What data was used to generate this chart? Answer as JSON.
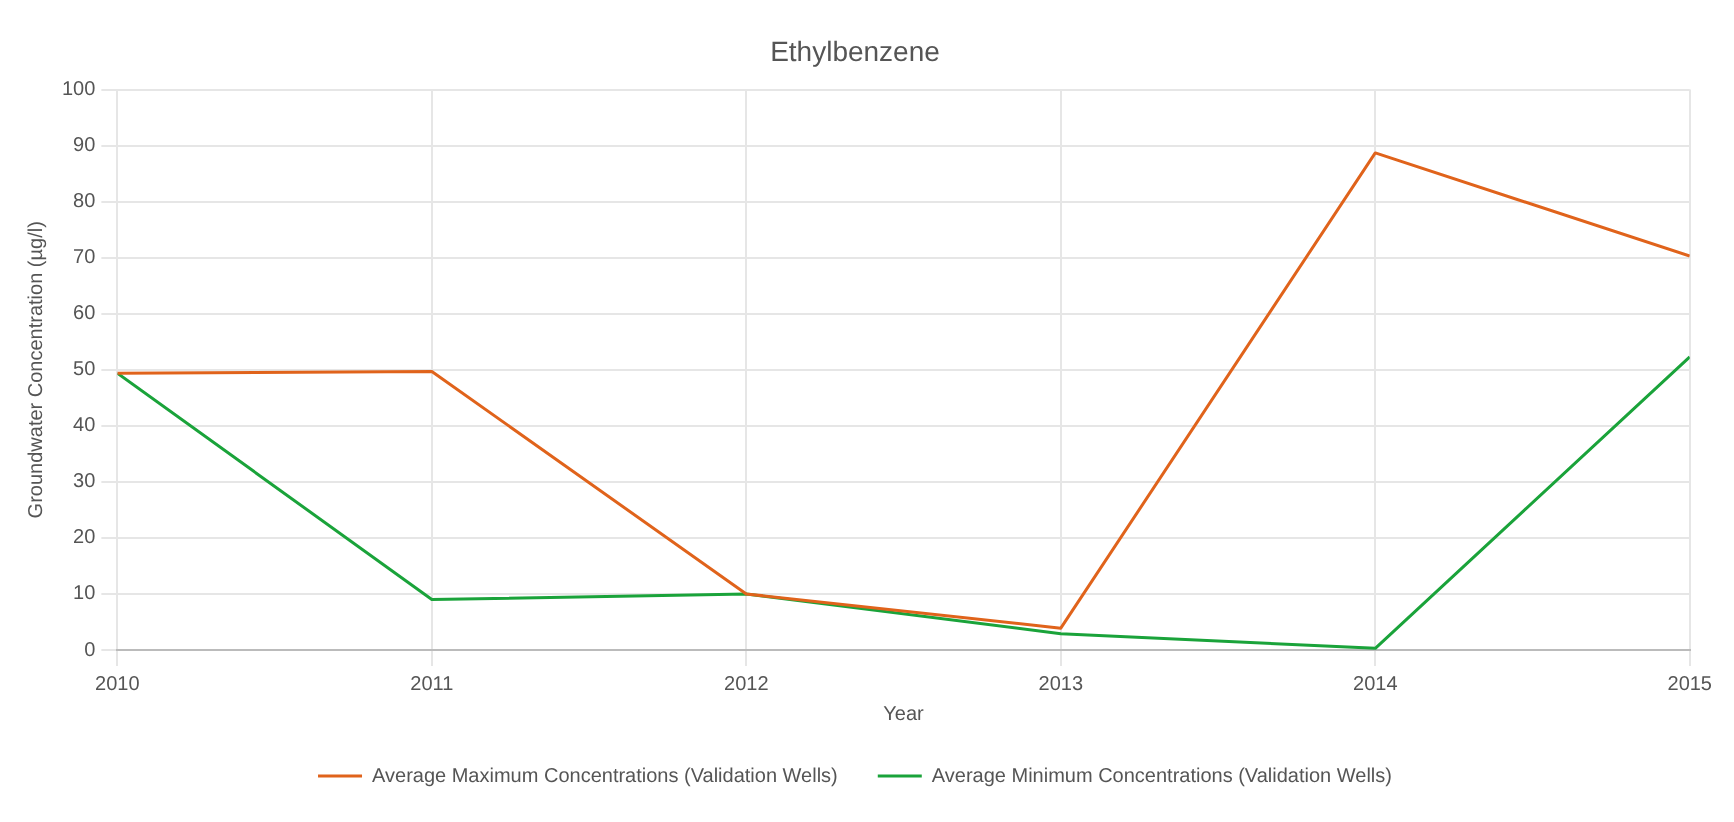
{
  "chart_data": {
    "type": "line",
    "title": "Ethylbenzene",
    "xlabel": "Year",
    "ylabel": "Groundwater Concentration (µg/l)",
    "x": [
      2010,
      2011,
      2012,
      2013,
      2014,
      2015
    ],
    "series": [
      {
        "name": "Average Maximum Concentrations (Validation Wells)",
        "color": "#e0631b",
        "values": [
          49.4,
          49.7,
          10,
          3.9,
          88.7,
          70.3
        ]
      },
      {
        "name": "Average Minimum Concentrations (Validation Wells)",
        "color": "#1aa33a",
        "values": [
          49.4,
          9,
          10,
          2.9,
          0.3,
          52.3
        ]
      }
    ],
    "xlim": [
      2010,
      2015
    ],
    "xticks": [
      2010,
      2011,
      2012,
      2013,
      2014,
      2015
    ],
    "ylim": [
      0,
      100
    ],
    "yticks": [
      0,
      10,
      20,
      30,
      40,
      50,
      60,
      70,
      80,
      90,
      100
    ],
    "grid": true,
    "legend": "bottom",
    "marker": "none",
    "line_style": "solid"
  }
}
